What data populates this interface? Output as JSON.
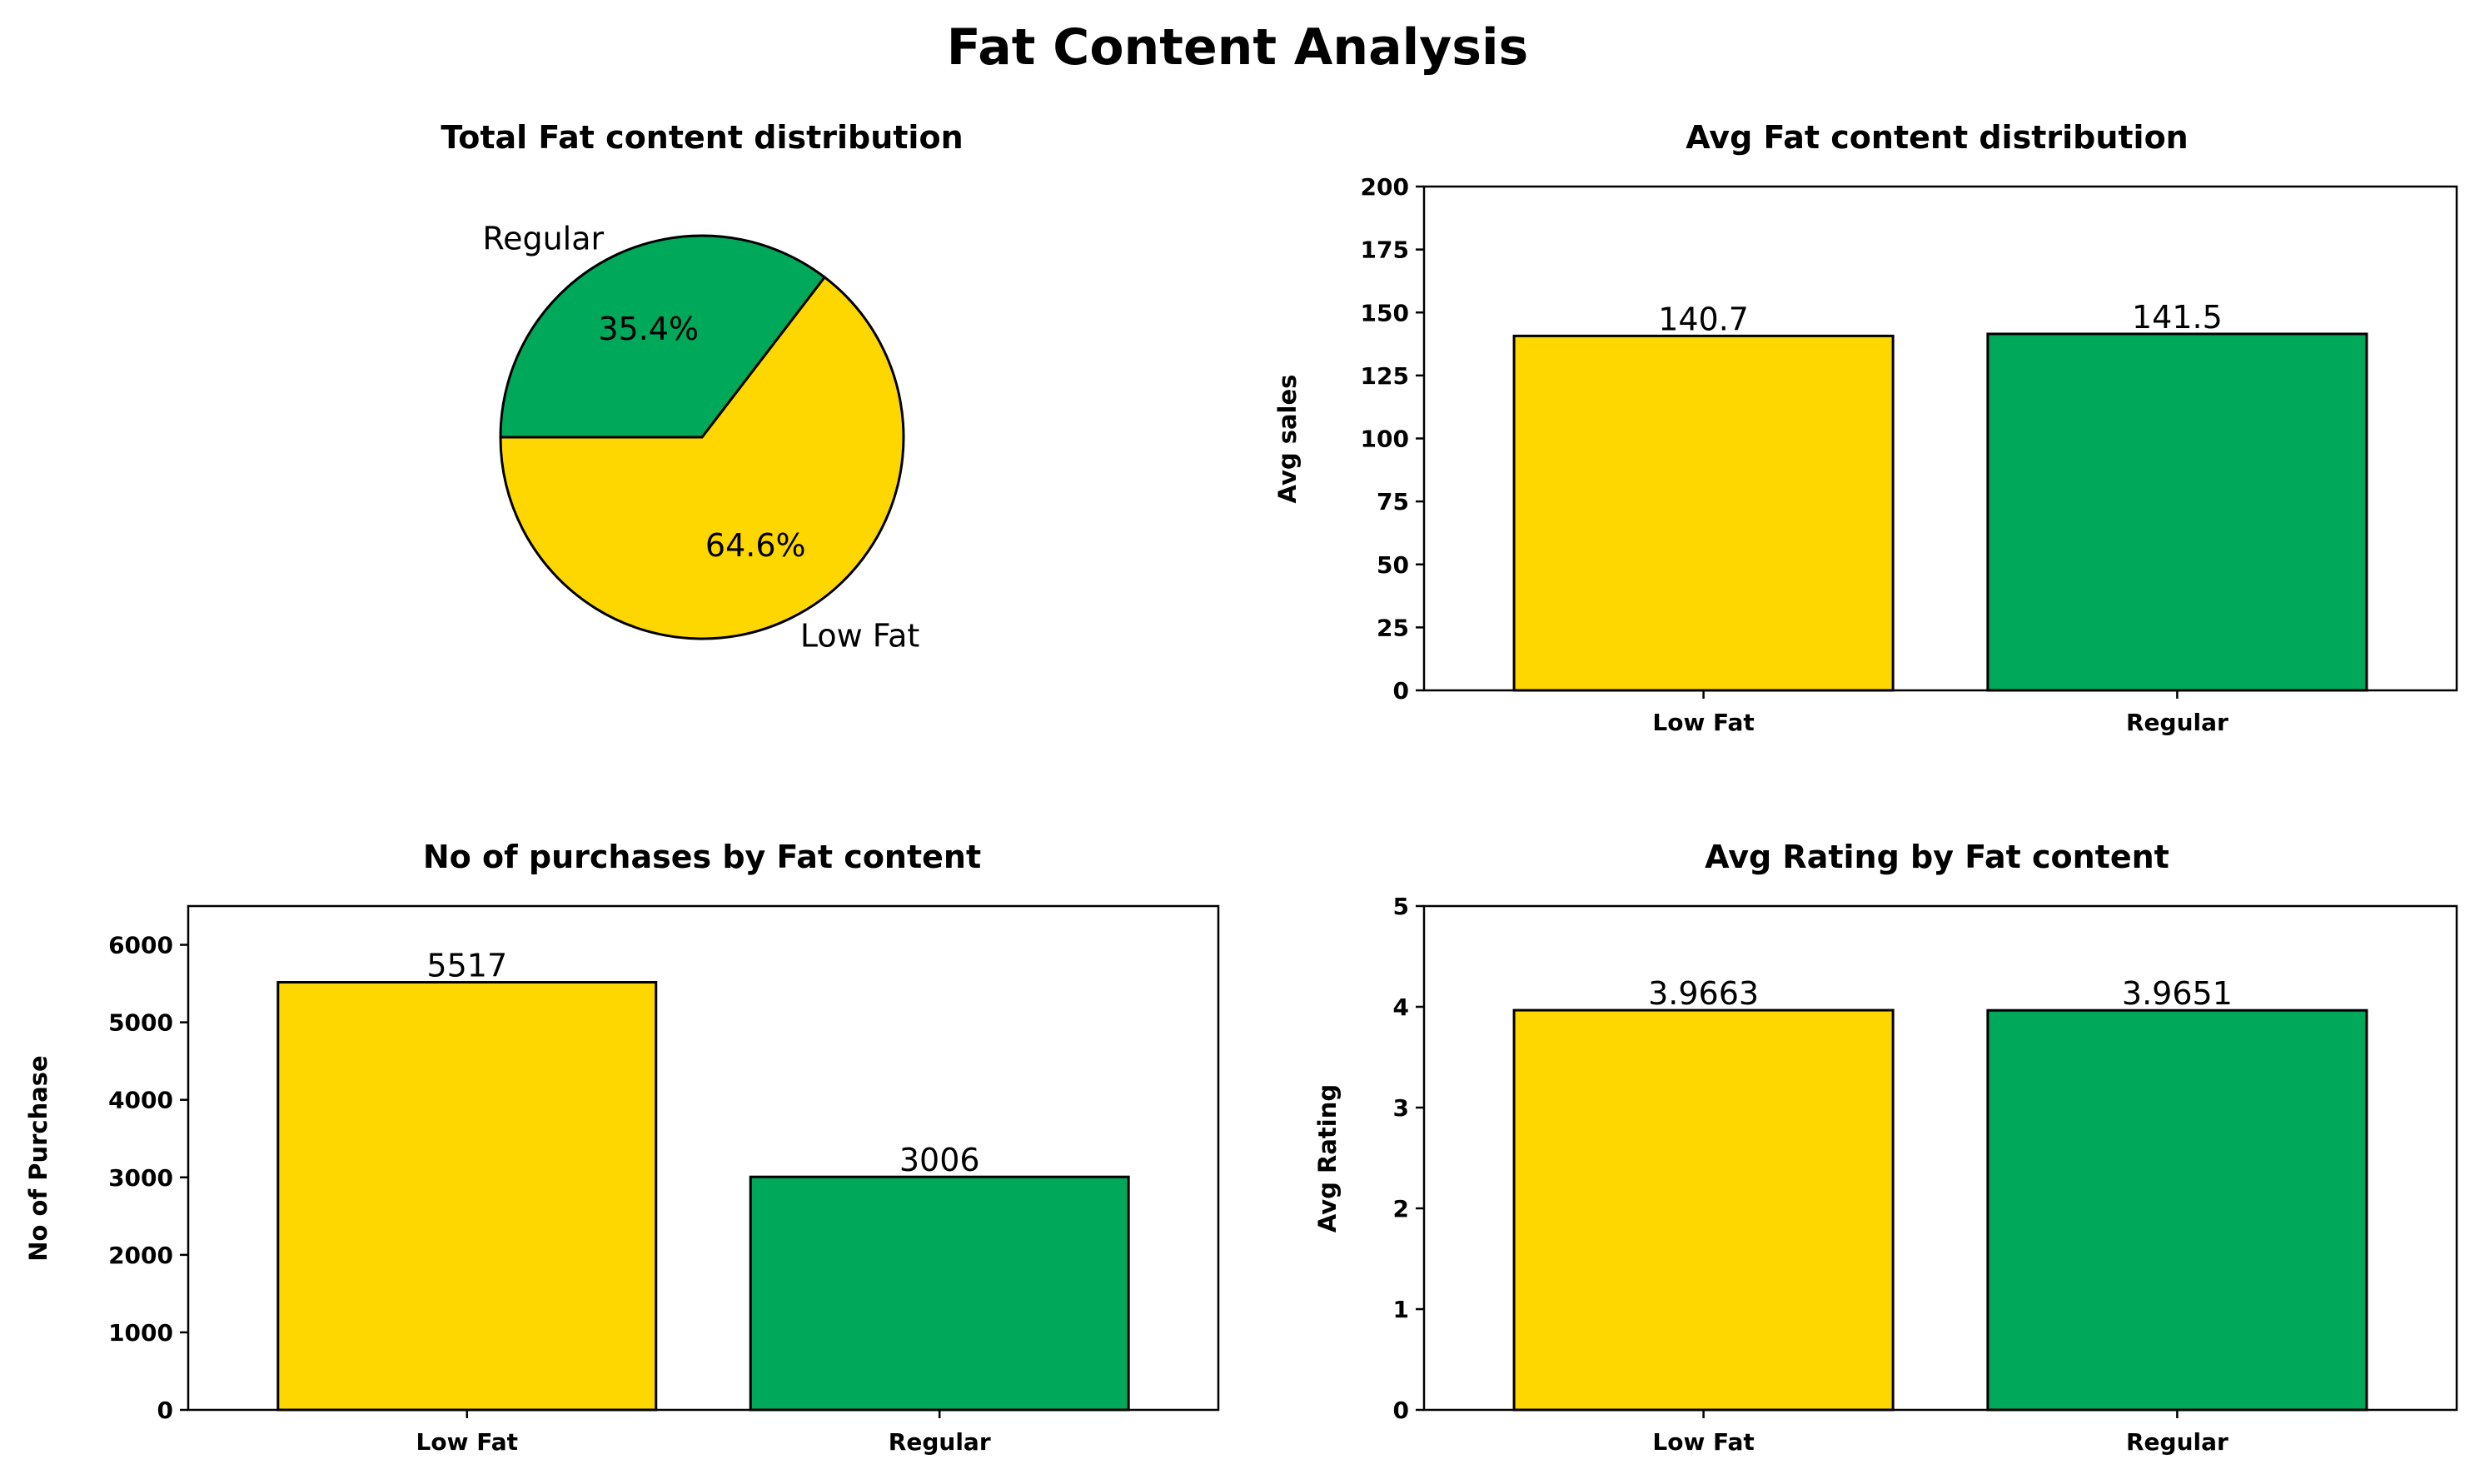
{
  "figure": {
    "title": "Fat Content Analysis"
  },
  "colors": {
    "low_fat": "#FFD700",
    "regular": "#00A85A",
    "edge": "#000000"
  },
  "chart_data": [
    {
      "type": "pie",
      "title": "Total Fat content distribution",
      "labels": [
        "Low Fat",
        "Regular"
      ],
      "values": [
        64.6,
        35.4
      ],
      "autopct": [
        "64.6%",
        "35.4%"
      ],
      "colors": [
        "#FFD700",
        "#00A85A"
      ]
    },
    {
      "type": "bar",
      "title": "Avg Fat content distribution",
      "categories": [
        "Low Fat",
        "Regular"
      ],
      "values": [
        140.7,
        141.5
      ],
      "data_labels": [
        "140.7",
        "141.5"
      ],
      "xlabel": "",
      "ylabel": "Avg sales",
      "ylim": [
        0,
        200
      ],
      "yticks": [
        0,
        25,
        50,
        75,
        100,
        125,
        150,
        175,
        200
      ],
      "colors": [
        "#FFD700",
        "#00A85A"
      ]
    },
    {
      "type": "bar",
      "title": "No of purchases by Fat content",
      "categories": [
        "Low Fat",
        "Regular"
      ],
      "values": [
        5517,
        3006
      ],
      "data_labels": [
        "5517",
        "3006"
      ],
      "xlabel": "",
      "ylabel": "No of Purchase",
      "ylim": [
        0,
        6500
      ],
      "yticks": [
        0,
        1000,
        2000,
        3000,
        4000,
        5000,
        6000
      ],
      "colors": [
        "#FFD700",
        "#00A85A"
      ]
    },
    {
      "type": "bar",
      "title": "Avg Rating by Fat content",
      "categories": [
        "Low Fat",
        "Regular"
      ],
      "values": [
        3.9663,
        3.9651
      ],
      "data_labels": [
        "3.9663",
        "3.9651"
      ],
      "xlabel": "",
      "ylabel": "Avg Rating",
      "ylim": [
        0,
        5
      ],
      "yticks": [
        0,
        1,
        2,
        3,
        4,
        5
      ],
      "colors": [
        "#FFD700",
        "#00A85A"
      ]
    }
  ]
}
